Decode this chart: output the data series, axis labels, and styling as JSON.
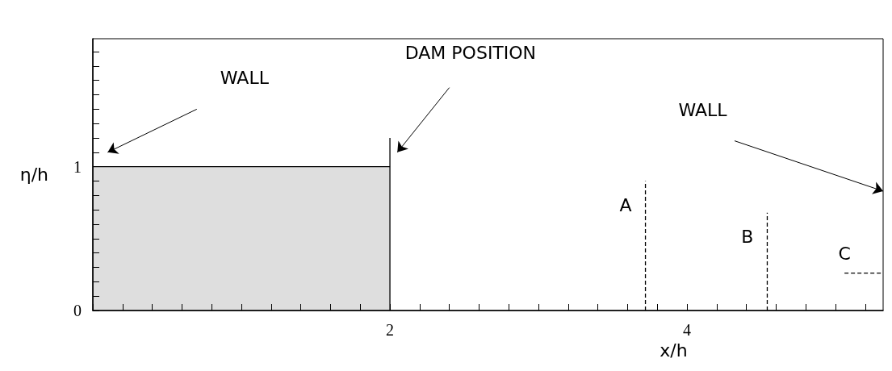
{
  "chart_data": {
    "type": "line",
    "xlabel": "x/h",
    "ylabel": "η/h",
    "xlim": [
      0,
      5.32
    ],
    "ylim": [
      0,
      1.89
    ],
    "xticks": [
      {
        "value": 0,
        "label": null
      },
      {
        "value": 0.2,
        "label": null
      },
      {
        "value": 0.4,
        "label": null
      },
      {
        "value": 0.6,
        "label": null
      },
      {
        "value": 0.8,
        "label": null
      },
      {
        "value": 1,
        "label": null
      },
      {
        "value": 1.2,
        "label": null
      },
      {
        "value": 1.4,
        "label": null
      },
      {
        "value": 1.6,
        "label": null
      },
      {
        "value": 1.8,
        "label": null
      },
      2,
      {
        "value": 2.2,
        "label": null
      },
      {
        "value": 2.4,
        "label": null
      },
      {
        "value": 2.6,
        "label": null
      },
      {
        "value": 2.8,
        "label": null
      },
      {
        "value": 3,
        "label": null
      },
      {
        "value": 3.2,
        "label": null
      },
      {
        "value": 3.4,
        "label": null
      },
      {
        "value": 3.6,
        "label": null
      },
      {
        "value": 3.8,
        "label": null
      },
      4,
      {
        "value": 4.2,
        "label": null
      },
      {
        "value": 4.4,
        "label": null
      },
      {
        "value": 4.6,
        "label": null
      },
      {
        "value": 4.8,
        "label": null
      },
      {
        "value": 5,
        "label": null
      },
      {
        "value": 5.2,
        "label": null
      }
    ],
    "yticks": [
      0,
      {
        "value": 0.1,
        "label": null
      },
      {
        "value": 0.2,
        "label": null
      },
      {
        "value": 0.3,
        "label": null
      },
      {
        "value": 0.4,
        "label": null
      },
      {
        "value": 0.5,
        "label": null
      },
      {
        "value": 0.6,
        "label": null
      },
      {
        "value": 0.7,
        "label": null
      },
      {
        "value": 0.8,
        "label": null
      },
      {
        "value": 0.9,
        "label": null
      },
      1,
      {
        "value": 1.1,
        "label": null
      },
      {
        "value": 1.2,
        "label": null
      },
      {
        "value": 1.3,
        "label": null
      },
      {
        "value": 1.4,
        "label": null
      },
      {
        "value": 1.5,
        "label": null
      },
      {
        "value": 1.6,
        "label": null
      },
      {
        "value": 1.7,
        "label": null
      },
      {
        "value": 1.8,
        "label": null
      }
    ],
    "grid": false,
    "legend": false,
    "marker": "none",
    "series": [
      {
        "type": "area",
        "color": "#000000",
        "x": [
          0,
          2
        ],
        "values": [
          1,
          1
        ],
        "line_style": "solid"
      },
      {
        "color": "#000000",
        "x": [
          2,
          2
        ],
        "values": [
          0,
          1.2
        ],
        "line_style": "solid"
      },
      {
        "name": "A",
        "color": "#000000",
        "x": [
          3.72,
          3.72
        ],
        "values": [
          0,
          0.9
        ],
        "line_style": "dashed"
      },
      {
        "name": "B",
        "color": "#000000",
        "x": [
          4.54,
          4.54
        ],
        "values": [
          0,
          0.68
        ],
        "line_style": "dashed"
      },
      {
        "name": "C",
        "color": "#000000",
        "x": [
          5.06,
          5.32
        ],
        "values": [
          0.26,
          0.26
        ],
        "line_style": "dashed"
      }
    ],
    "annotations": [
      "WALL",
      "DAM POSITION",
      "WALL"
    ]
  }
}
